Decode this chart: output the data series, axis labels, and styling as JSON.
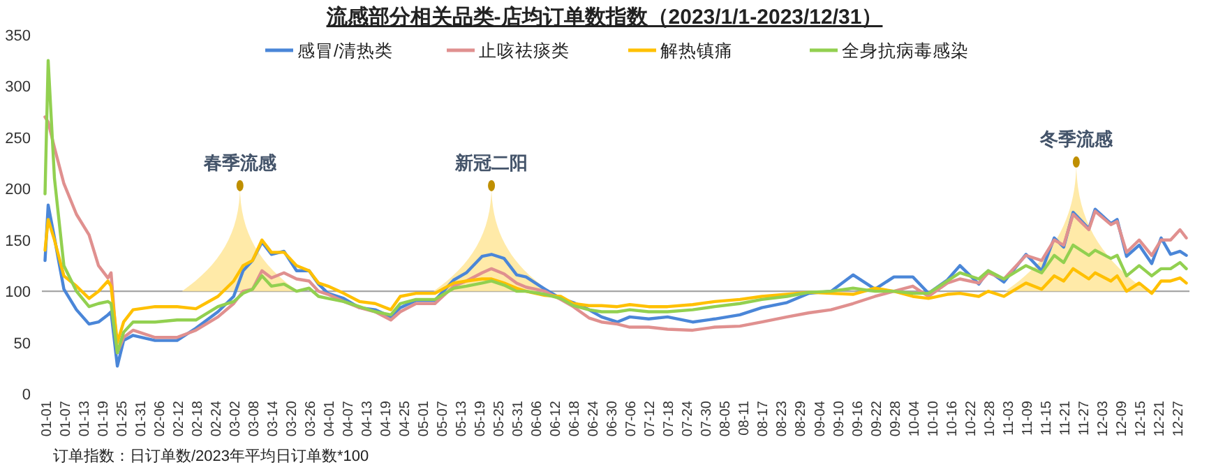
{
  "chart_data": {
    "type": "line",
    "title": "流感部分相关品类-店均订单数指数（2023/1/1-2023/12/31）",
    "x": [
      "2023-01-01",
      "2023-01-02",
      "2023-01-04",
      "2023-01-07",
      "2023-01-11",
      "2023-01-15",
      "2023-01-18",
      "2023-01-21",
      "2023-01-22",
      "2023-01-24",
      "2023-01-26",
      "2023-01-29",
      "2023-02-05",
      "2023-02-12",
      "2023-02-18",
      "2023-02-25",
      "2023-03-02",
      "2023-03-05",
      "2023-03-08",
      "2023-03-11",
      "2023-03-14",
      "2023-03-18",
      "2023-03-22",
      "2023-03-26",
      "2023-03-29",
      "2023-04-01",
      "2023-04-06",
      "2023-04-11",
      "2023-04-16",
      "2023-04-21",
      "2023-04-24",
      "2023-04-29",
      "2023-05-05",
      "2023-05-11",
      "2023-05-15",
      "2023-05-20",
      "2023-05-23",
      "2023-05-27",
      "2023-05-31",
      "2023-06-03",
      "2023-06-09",
      "2023-06-14",
      "2023-06-18",
      "2023-06-23",
      "2023-06-27",
      "2023-07-02",
      "2023-07-06",
      "2023-07-12",
      "2023-07-18",
      "2023-07-26",
      "2023-08-02",
      "2023-08-10",
      "2023-08-17",
      "2023-08-25",
      "2023-09-01",
      "2023-09-08",
      "2023-09-15",
      "2023-09-22",
      "2023-09-28",
      "2023-10-04",
      "2023-10-09",
      "2023-10-15",
      "2023-10-19",
      "2023-10-25",
      "2023-10-28",
      "2023-11-02",
      "2023-11-09",
      "2023-11-14",
      "2023-11-18",
      "2023-11-21",
      "2023-11-24",
      "2023-11-29",
      "2023-12-01",
      "2023-12-06",
      "2023-12-08",
      "2023-12-11",
      "2023-12-15",
      "2023-12-19",
      "2023-12-22",
      "2023-12-25",
      "2023-12-28",
      "2023-12-30"
    ],
    "series": [
      {
        "name": "感冒/清热类",
        "color": "#4a86d8",
        "values": [
          130,
          184,
          152,
          102,
          82,
          68,
          70,
          77,
          80,
          27,
          52,
          57,
          52,
          52,
          64,
          80,
          95,
          120,
          130,
          148,
          136,
          139,
          120,
          120,
          107,
          98,
          93,
          84,
          82,
          75,
          84,
          91,
          91,
          111,
          118,
          134,
          136,
          132,
          116,
          114,
          102,
          93,
          89,
          82,
          75,
          70,
          75,
          73,
          75,
          70,
          73,
          77,
          84,
          89,
          98,
          100,
          116,
          102,
          114,
          114,
          98,
          111,
          125,
          107,
          120,
          109,
          136,
          120,
          152,
          143,
          177,
          161,
          180,
          166,
          170,
          134,
          145,
          127,
          152,
          136,
          139,
          135
        ]
      },
      {
        "name": "止咳祛痰类",
        "color": "#e0908f",
        "values": [
          270,
          265,
          240,
          205,
          175,
          155,
          125,
          113,
          118,
          40,
          55,
          62,
          55,
          55,
          62,
          75,
          88,
          100,
          102,
          120,
          113,
          118,
          112,
          110,
          100,
          97,
          90,
          84,
          80,
          72,
          80,
          88,
          88,
          105,
          110,
          118,
          122,
          117,
          108,
          104,
          100,
          92,
          85,
          74,
          70,
          68,
          65,
          65,
          63,
          62,
          65,
          66,
          70,
          75,
          79,
          82,
          88,
          95,
          100,
          105,
          95,
          108,
          112,
          108,
          118,
          112,
          135,
          130,
          150,
          145,
          175,
          160,
          178,
          165,
          168,
          138,
          150,
          135,
          150,
          150,
          160,
          152
        ]
      },
      {
        "name": "解热镇痛",
        "color": "#ffc000",
        "values": [
          140,
          170,
          150,
          115,
          105,
          93,
          100,
          110,
          105,
          50,
          70,
          82,
          85,
          85,
          83,
          95,
          110,
          125,
          130,
          150,
          138,
          138,
          125,
          120,
          108,
          105,
          98,
          90,
          88,
          82,
          95,
          98,
          98,
          108,
          110,
          112,
          112,
          108,
          103,
          100,
          96,
          95,
          88,
          86,
          86,
          85,
          87,
          85,
          85,
          87,
          90,
          92,
          95,
          97,
          99,
          98,
          97,
          103,
          100,
          95,
          93,
          97,
          98,
          95,
          100,
          95,
          108,
          102,
          115,
          110,
          122,
          112,
          118,
          110,
          115,
          100,
          108,
          98,
          110,
          110,
          113,
          108
        ]
      },
      {
        "name": "全身抗病毒感染",
        "color": "#92d050",
        "values": [
          195,
          325,
          210,
          125,
          100,
          85,
          88,
          90,
          88,
          40,
          60,
          70,
          70,
          72,
          72,
          85,
          90,
          98,
          102,
          115,
          105,
          107,
          100,
          103,
          95,
          93,
          90,
          85,
          80,
          77,
          88,
          92,
          92,
          103,
          105,
          108,
          110,
          106,
          100,
          100,
          97,
          93,
          86,
          82,
          80,
          80,
          82,
          80,
          80,
          82,
          85,
          88,
          92,
          95,
          99,
          100,
          103,
          100,
          100,
          98,
          98,
          110,
          118,
          112,
          120,
          112,
          125,
          118,
          135,
          128,
          145,
          135,
          140,
          132,
          135,
          115,
          125,
          115,
          122,
          122,
          128,
          122
        ]
      }
    ],
    "xlim": [
      "2022-12-31",
      "2023-12-31"
    ],
    "xticks": [
      {
        "value": "2023-01-01",
        "label": "01-01"
      },
      {
        "value": "2023-01-07",
        "label": "01-07"
      },
      {
        "value": "2023-01-13",
        "label": "01-13"
      },
      {
        "value": "2023-01-19",
        "label": "01-19"
      },
      {
        "value": "2023-01-25",
        "label": "01-25"
      },
      {
        "value": "2023-01-31",
        "label": "01-31"
      },
      {
        "value": "2023-02-06",
        "label": "02-06"
      },
      {
        "value": "2023-02-12",
        "label": "02-12"
      },
      {
        "value": "2023-02-18",
        "label": "02-18"
      },
      {
        "value": "2023-02-24",
        "label": "02-24"
      },
      {
        "value": "2023-03-02",
        "label": "03-02"
      },
      {
        "value": "2023-03-08",
        "label": "03-08"
      },
      {
        "value": "2023-03-14",
        "label": "03-14"
      },
      {
        "value": "2023-03-20",
        "label": "03-20"
      },
      {
        "value": "2023-03-26",
        "label": "03-26"
      },
      {
        "value": "2023-04-01",
        "label": "04-01"
      },
      {
        "value": "2023-04-07",
        "label": "04-07"
      },
      {
        "value": "2023-04-13",
        "label": "04-13"
      },
      {
        "value": "2023-04-19",
        "label": "04-19"
      },
      {
        "value": "2023-04-25",
        "label": "04-25"
      },
      {
        "value": "2023-05-01",
        "label": "05-01"
      },
      {
        "value": "2023-05-07",
        "label": "05-07"
      },
      {
        "value": "2023-05-13",
        "label": "05-13"
      },
      {
        "value": "2023-05-19",
        "label": "05-19"
      },
      {
        "value": "2023-05-25",
        "label": "05-25"
      },
      {
        "value": "2023-05-31",
        "label": "05-31"
      },
      {
        "value": "2023-06-06",
        "label": "06-06"
      },
      {
        "value": "2023-06-12",
        "label": "06-12"
      },
      {
        "value": "2023-06-18",
        "label": "06-18"
      },
      {
        "value": "2023-06-24",
        "label": "06-24"
      },
      {
        "value": "2023-06-30",
        "label": "06-30"
      },
      {
        "value": "2023-07-06",
        "label": "07-06"
      },
      {
        "value": "2023-07-12",
        "label": "07-12"
      },
      {
        "value": "2023-07-18",
        "label": "07-18"
      },
      {
        "value": "2023-07-24",
        "label": "07-24"
      },
      {
        "value": "2023-07-30",
        "label": "07-30"
      },
      {
        "value": "2023-08-05",
        "label": "08-05"
      },
      {
        "value": "2023-08-11",
        "label": "08-11"
      },
      {
        "value": "2023-08-17",
        "label": "08-17"
      },
      {
        "value": "2023-08-23",
        "label": "08-23"
      },
      {
        "value": "2023-08-29",
        "label": "08-29"
      },
      {
        "value": "2023-09-04",
        "label": "09-04"
      },
      {
        "value": "2023-09-10",
        "label": "09-10"
      },
      {
        "value": "2023-09-16",
        "label": "09-16"
      },
      {
        "value": "2023-09-22",
        "label": "09-22"
      },
      {
        "value": "2023-09-28",
        "label": "09-28"
      },
      {
        "value": "2023-10-04",
        "label": "10-04"
      },
      {
        "value": "2023-10-10",
        "label": "10-10"
      },
      {
        "value": "2023-10-16",
        "label": "10-16"
      },
      {
        "value": "2023-10-22",
        "label": "10-22"
      },
      {
        "value": "2023-10-28",
        "label": "10-28"
      },
      {
        "value": "2023-11-03",
        "label": "11-03"
      },
      {
        "value": "2023-11-09",
        "label": "11-09"
      },
      {
        "value": "2023-11-15",
        "label": "11-15"
      },
      {
        "value": "2023-11-21",
        "label": "11-21"
      },
      {
        "value": "2023-11-27",
        "label": "11-27"
      },
      {
        "value": "2023-12-03",
        "label": "12-03"
      },
      {
        "value": "2023-12-09",
        "label": "12-09"
      },
      {
        "value": "2023-12-15",
        "label": "12-15"
      },
      {
        "value": "2023-12-21",
        "label": "12-21"
      },
      {
        "value": "2023-12-27",
        "label": "12-27"
      }
    ],
    "ylim": [
      0,
      350
    ],
    "yticks": [
      0,
      50,
      100,
      150,
      200,
      250,
      300,
      350
    ],
    "grid": false,
    "legend": "top",
    "ref_lines": [
      {
        "axis": "y",
        "value": 100,
        "color": "#a6a6a6"
      }
    ],
    "annotations": [
      {
        "text": "春季流感",
        "x": "2023-03-04",
        "y": 203
      },
      {
        "text": "新冠二阳",
        "x": "2023-05-23",
        "y": 203
      },
      {
        "text": "冬季流感",
        "x": "2023-11-25",
        "y": 226
      },
      "订单指数：日订单数/2023年平均日订单数*100"
    ]
  }
}
